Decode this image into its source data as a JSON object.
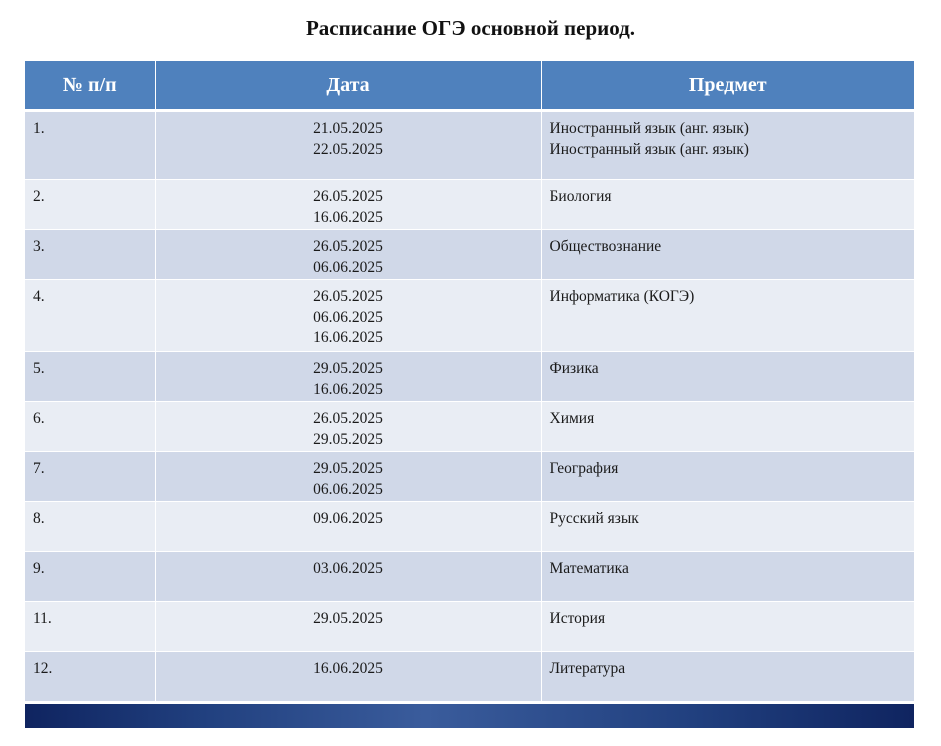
{
  "title": "Расписание ОГЭ основной период.",
  "table": {
    "headers": [
      "№ п/п",
      "Дата",
      "Предмет"
    ],
    "rows": [
      {
        "num": "1.",
        "dates": [
          "21.05.2025",
          "22.05.2025"
        ],
        "subjects": [
          "Иностранный язык (анг. язык)",
          "Иностранный язык (анг. язык)"
        ]
      },
      {
        "num": "2.",
        "dates": [
          "26.05.2025",
          "16.06.2025"
        ],
        "subjects": [
          "Биология"
        ]
      },
      {
        "num": "3.",
        "dates": [
          "26.05.2025",
          "06.06.2025"
        ],
        "subjects": [
          "Обществознание"
        ]
      },
      {
        "num": "4.",
        "dates": [
          "26.05.2025",
          "06.06.2025",
          "16.06.2025"
        ],
        "subjects": [
          "Информатика (КОГЭ)"
        ]
      },
      {
        "num": "5.",
        "dates": [
          "29.05.2025",
          "16.06.2025"
        ],
        "subjects": [
          "Физика"
        ]
      },
      {
        "num": "6.",
        "dates": [
          "26.05.2025",
          "29.05.2025"
        ],
        "subjects": [
          "Химия"
        ]
      },
      {
        "num": "7.",
        "dates": [
          "29.05.2025",
          "06.06.2025"
        ],
        "subjects": [
          "География"
        ]
      },
      {
        "num": "8.",
        "dates": [
          "09.06.2025"
        ],
        "subjects": [
          "Русский язык"
        ]
      },
      {
        "num": "9.",
        "dates": [
          "03.06.2025"
        ],
        "subjects": [
          "Математика"
        ]
      },
      {
        "num": "11.",
        "dates": [
          "29.05.2025"
        ],
        "subjects": [
          "История"
        ]
      },
      {
        "num": "12.",
        "dates": [
          "16.06.2025"
        ],
        "subjects": [
          "Литература"
        ]
      }
    ]
  },
  "colors": {
    "header_bg": "#4f81bd",
    "row_odd_bg": "#d0d8e8",
    "row_even_bg": "#e9edf4",
    "footer_bar": "#1f3b7a"
  }
}
